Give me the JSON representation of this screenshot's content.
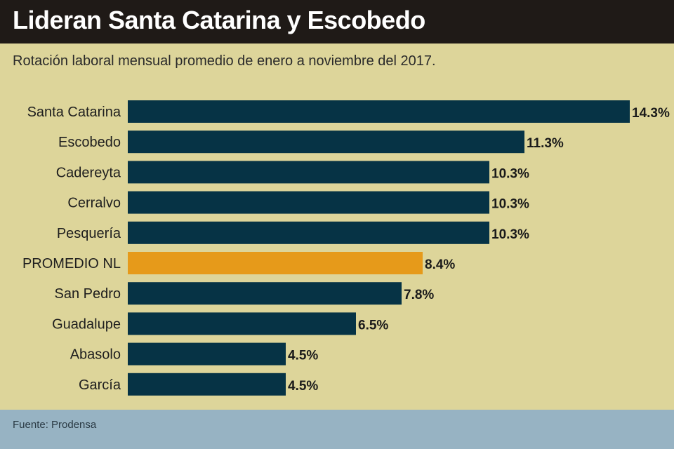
{
  "header": {
    "title": "Lideran Santa Catarina y Escobedo",
    "subtitle": "Rotación laboral mensual promedio de enero a noviembre del 2017."
  },
  "footer": {
    "source": "Fuente: Prodensa"
  },
  "colors": {
    "background": "#ddd59a",
    "bar": "#063345",
    "highlight": "#e69a1a",
    "title_bg": "#1f1a17",
    "footer_bg": "#97b3c3"
  },
  "chart_data": {
    "type": "bar",
    "orientation": "horizontal",
    "categories": [
      "Santa Catarina",
      "Escobedo",
      "Cadereyta",
      "Cerralvo",
      "Pesquería",
      "PROMEDIO NL",
      "San Pedro",
      "Guadalupe",
      "Abasolo",
      "García"
    ],
    "values": [
      14.3,
      11.3,
      10.3,
      10.3,
      10.3,
      8.4,
      7.8,
      6.5,
      4.5,
      4.5
    ],
    "value_labels": [
      "14.3%",
      "11.3%",
      "10.3%",
      "10.3%",
      "10.3%",
      "8.4%",
      "7.8%",
      "6.5%",
      "4.5%",
      "4.5%"
    ],
    "highlight_category": "PROMEDIO NL",
    "grid": false,
    "legend": "none"
  }
}
